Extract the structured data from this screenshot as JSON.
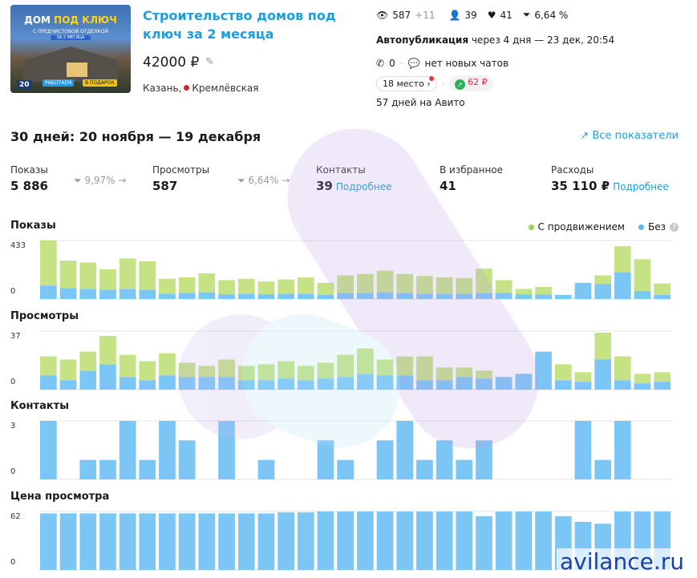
{
  "listing": {
    "title": "Строительство домов под ключ за 2 месяца",
    "price": "42000 ₽",
    "city": "Казань,",
    "metro": "Кремлёвская",
    "thumb": {
      "line1a": "ДОМ ",
      "line1b": "ПОД КЛЮЧ",
      "line2": "С ПРЕДЧИСТОВОЙ ОТДЕЛКОЙ",
      "line3": "ЗА 2 МЕСЯЦА",
      "badge": "20",
      "work": "РАБОТАЕМ",
      "gift": "В ПОДАРОК"
    }
  },
  "stats": {
    "views": "587",
    "views_add": "+11",
    "contacts": "39",
    "favorites": "41",
    "conversion": "6,64 %"
  },
  "autopub": {
    "label": "Автопубликация",
    "text": " через 4 дня — 23 дек, 20:54"
  },
  "calls": {
    "count": "0",
    "chats": "нет новых чатов"
  },
  "promo": {
    "place": "18 место ›",
    "price": "62 ₽"
  },
  "days_on_avito": "57 дней на Авито",
  "period": "30 дней: 20 ноября — 19 декабря",
  "all_metrics_link": "Все показатели",
  "metrics": {
    "shows": {
      "label": "Показы",
      "value": "5 886",
      "conv": "9,97% →"
    },
    "views": {
      "label": "Просмотры",
      "value": "587",
      "conv": "6,64% →"
    },
    "contacts": {
      "label": "Контакты",
      "value": "39",
      "link": "Подробнее"
    },
    "favorites": {
      "label": "В избранное",
      "value": "41"
    },
    "spend": {
      "label": "Расходы",
      "value": "35 110 ₽",
      "link": "Подробнее"
    }
  },
  "legend": {
    "with_promo": "С продвижением",
    "without": "Без",
    "help": "?"
  },
  "colors": {
    "green": "#c5e384",
    "blue": "#7cc6f6",
    "accent": "#1d9ddd"
  },
  "watermark": "avilance.ru",
  "chart_data": [
    {
      "type": "bar",
      "title": "Показы",
      "ylim": [
        0,
        433
      ],
      "ytick_top": "433",
      "ytick_bottom": "0",
      "series": [
        {
          "name": "Без",
          "values": [
            100,
            80,
            75,
            70,
            75,
            70,
            40,
            45,
            50,
            35,
            40,
            35,
            40,
            40,
            30,
            45,
            45,
            50,
            45,
            40,
            40,
            40,
            45,
            45,
            35,
            35,
            30,
            120,
            110,
            200,
            60,
            30
          ]
        },
        {
          "name": "С продвижением",
          "values": [
            333,
            205,
            195,
            150,
            225,
            210,
            110,
            115,
            140,
            105,
            110,
            95,
            105,
            120,
            90,
            130,
            140,
            160,
            140,
            130,
            120,
            115,
            180,
            95,
            40,
            55,
            0,
            0,
            65,
            190,
            235,
            85
          ]
        }
      ]
    },
    {
      "type": "bar",
      "title": "Просмотры",
      "ylim": [
        0,
        37
      ],
      "ytick_top": "37",
      "ytick_bottom": "0",
      "series": [
        {
          "name": "Без",
          "values": [
            9,
            6,
            12,
            16,
            8,
            6,
            9,
            8,
            8,
            8,
            6,
            6,
            7,
            6,
            7,
            8,
            10,
            9,
            9,
            6,
            6,
            8,
            7,
            8,
            10,
            24,
            6,
            5,
            19,
            6,
            4,
            5
          ]
        },
        {
          "name": "С продвижением",
          "values": [
            12,
            13,
            12,
            18,
            14,
            12,
            14,
            9,
            7,
            11,
            9,
            10,
            11,
            9,
            10,
            14,
            16,
            10,
            12,
            15,
            8,
            6,
            5,
            0,
            0,
            0,
            10,
            6,
            17,
            15,
            6,
            6
          ]
        }
      ]
    },
    {
      "type": "bar",
      "title": "Контакты",
      "ylim": [
        0,
        3
      ],
      "ytick_top": "3",
      "ytick_bottom": "0",
      "series": [
        {
          "name": "Без",
          "values": [
            3,
            0,
            1,
            1,
            3,
            1,
            3,
            2,
            0,
            3,
            0,
            1,
            0,
            0,
            2,
            1,
            0,
            2,
            3,
            1,
            2,
            1,
            2,
            0,
            0,
            0,
            0,
            3,
            1,
            3,
            0,
            0
          ]
        }
      ]
    },
    {
      "type": "bar",
      "title": "Цена просмотра",
      "ylim": [
        0,
        62
      ],
      "ytick_top": "62",
      "ytick_bottom": "0",
      "series": [
        {
          "name": "Без",
          "values": [
            60,
            60,
            60,
            60,
            60,
            60,
            60,
            60,
            60,
            60,
            60,
            60,
            61,
            61,
            62,
            62,
            62,
            62,
            62,
            62,
            62,
            62,
            57,
            62,
            62,
            62,
            57,
            51,
            49,
            62,
            62,
            62
          ]
        }
      ]
    }
  ]
}
